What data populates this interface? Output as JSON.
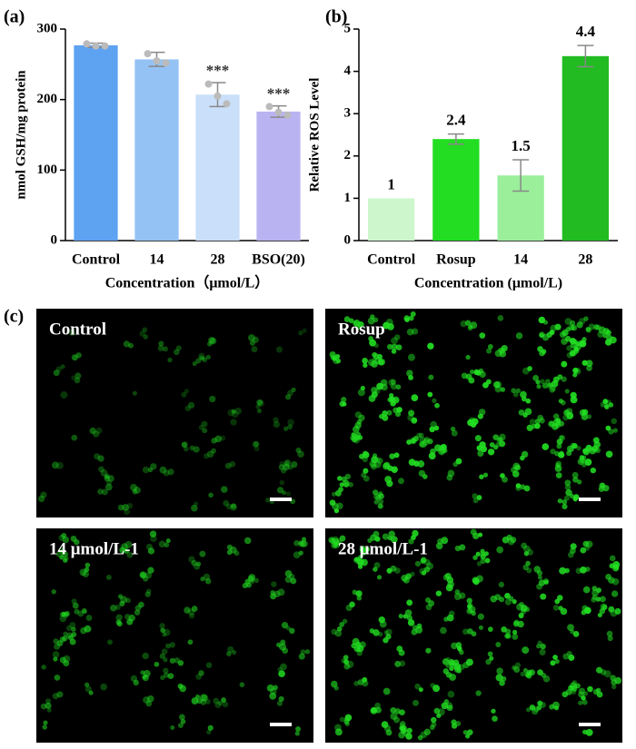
{
  "chart_data": [
    {
      "type": "bar",
      "title": "(a)",
      "y_label": "nmol GSH/mg protein",
      "x_label": "Concentration（μmol/L）",
      "categories": [
        "Control",
        "14",
        "28",
        "BSO(20)"
      ],
      "values": [
        277,
        257,
        207,
        183
      ],
      "errors": [
        3,
        10,
        17,
        8
      ],
      "points": [
        [
          279,
          276,
          276
        ],
        [
          265,
          255,
          252
        ],
        [
          222,
          205,
          194
        ],
        [
          190,
          182,
          178
        ]
      ],
      "annotations": [
        null,
        null,
        "***",
        "***"
      ],
      "colors": [
        "#5ea2f2",
        "#94c2f5",
        "#cadff9",
        "#b9b3f2"
      ],
      "ylim": [
        0,
        300
      ],
      "yticks": [
        0,
        100,
        200,
        300
      ]
    },
    {
      "type": "bar",
      "title": "(b)",
      "y_label": "Relative ROS Level",
      "x_label": "Concentration (μmol/L)",
      "categories": [
        "Control",
        "Rosup",
        "14",
        "28"
      ],
      "values": [
        1,
        2.4,
        1.54,
        4.36
      ],
      "value_labels": [
        "1",
        "2.4",
        "1.5",
        "4.4"
      ],
      "errors": [
        0,
        0.12,
        0.37,
        0.25
      ],
      "colors": [
        "#cdf6cd",
        "#22dd22",
        "#9bef9b",
        "#22bb22"
      ],
      "ylim": [
        0,
        5
      ],
      "yticks": [
        0,
        1,
        2,
        3,
        4,
        5
      ]
    }
  ],
  "figure_c": {
    "label": "(c)",
    "images": [
      "Control",
      "Rosup",
      "14 μmol/L-1",
      "28 μmol/L-1"
    ]
  }
}
